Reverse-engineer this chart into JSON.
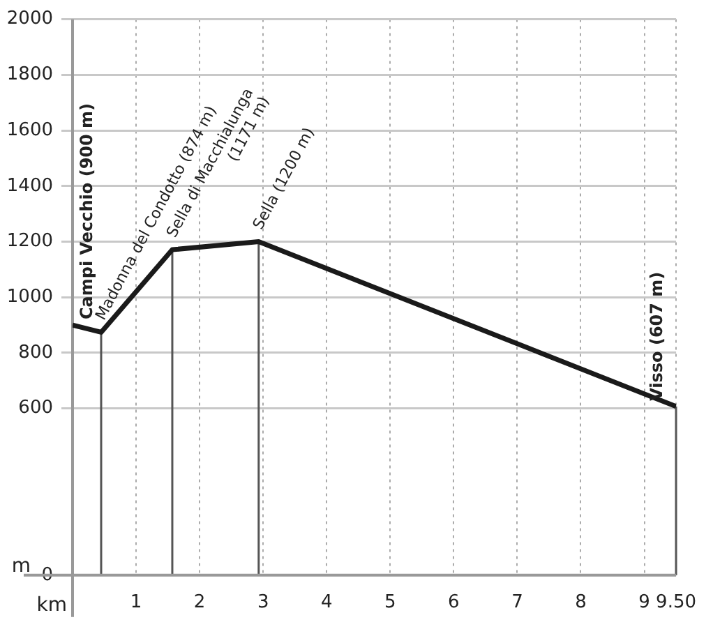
{
  "chart_data": {
    "type": "line",
    "xlabel": "km",
    "ylabel": "m",
    "x": [
      0,
      0.45,
      1.57,
      2.93,
      9.5
    ],
    "series": [
      {
        "color": "#1a1a1a",
        "values": [
          900,
          874,
          1171,
          1200,
          607
        ]
      }
    ],
    "xlim": [
      0,
      9.5
    ],
    "xticks": [
      1,
      2,
      3,
      4,
      5,
      6,
      7,
      8,
      9,
      {
        "value": 9.5,
        "label": "9.50"
      }
    ],
    "ylim": [
      0,
      2000
    ],
    "yticks": [
      0,
      600,
      800,
      1000,
      1200,
      1400,
      1600,
      1800,
      2000
    ],
    "grid": true,
    "legend": false,
    "marker": "none",
    "line_style": "solid",
    "annotations": [
      {
        "text": "Campi Vecchio (900 m)",
        "x": 0,
        "y": 900
      },
      {
        "text": "Madonna del Condotto (874 m)",
        "x": 0.45,
        "y": 874
      },
      {
        "text": "Sella di Macchialunga\n(1171 m)",
        "x": 1.57,
        "y": 1171
      },
      {
        "text": "Sella (1200 m)",
        "x": 2.93,
        "y": 1200
      },
      {
        "text": "Visso (607 m)",
        "x": 9.5,
        "y": 607
      }
    ]
  }
}
